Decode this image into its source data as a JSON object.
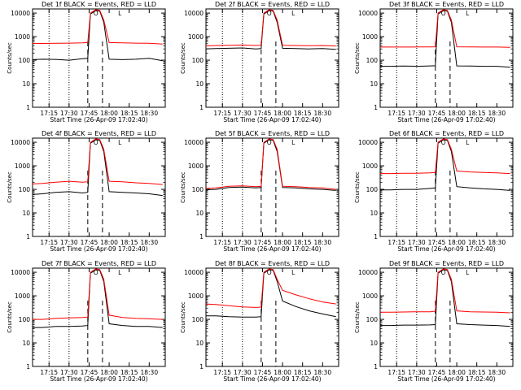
{
  "figure": {
    "footer_text": "Start Time (26-Apr-09 17:02:40)",
    "ylabel": "Counts/sec",
    "legend_glyphs": [
      "O",
      "L"
    ],
    "colors": {
      "events": "#000000",
      "lld": "#ff0000",
      "axis": "#000000",
      "background": "#ffffff"
    }
  },
  "chart_data": [
    {
      "type": "line",
      "title": "Det 1f BLACK = Events, RED = LLD",
      "xlabel": "Start Time (26-Apr-09 17:02:40)",
      "ylabel": "Counts/sec",
      "x_ticks": [
        "17:15",
        "17:30",
        "17:45",
        "18:00",
        "18:15",
        "18:30"
      ],
      "y_ticks": [
        "1",
        "10",
        "100",
        "1000",
        "10000"
      ],
      "y_scale": "log",
      "ylim": [
        1,
        15000
      ],
      "xlim": [
        "17:02:40",
        "18:42:00"
      ],
      "dotted_vlines": [
        "17:15",
        "17:30"
      ],
      "dashed_vlines": [
        "17:44",
        "17:55"
      ],
      "series": [
        {
          "name": "Events",
          "color": "#000000",
          "x": [
            "17:02",
            "17:10",
            "17:20",
            "17:30",
            "17:40",
            "17:44",
            "17:46",
            "17:50",
            "17:53",
            "17:56",
            "18:00",
            "18:10",
            "18:20",
            "18:30",
            "18:40"
          ],
          "values": [
            105,
            110,
            108,
            100,
            115,
            120,
            9000,
            13000,
            12000,
            4000,
            110,
            105,
            110,
            120,
            95
          ]
        },
        {
          "name": "LLD",
          "color": "#ff0000",
          "x": [
            "17:02",
            "17:10",
            "17:20",
            "17:30",
            "17:40",
            "17:44",
            "17:46",
            "17:50",
            "17:53",
            "17:56",
            "18:00",
            "18:10",
            "18:20",
            "18:30",
            "18:40"
          ],
          "values": [
            520,
            510,
            520,
            530,
            540,
            560,
            10000,
            14000,
            13000,
            5000,
            560,
            540,
            530,
            520,
            480
          ]
        }
      ]
    },
    {
      "type": "line",
      "title": "Det 2f BLACK = Events, RED = LLD",
      "xlabel": "Start Time (26-Apr-09 17:02:40)",
      "ylabel": "Counts/sec",
      "x_ticks": [
        "17:15",
        "17:30",
        "17:45",
        "18:00",
        "18:15",
        "18:30"
      ],
      "y_ticks": [
        "1",
        "10",
        "100",
        "1000",
        "10000"
      ],
      "y_scale": "log",
      "ylim": [
        1,
        15000
      ],
      "xlim": [
        "17:02:40",
        "18:42:00"
      ],
      "dotted_vlines": [
        "17:15",
        "17:30"
      ],
      "dashed_vlines": [
        "17:44",
        "17:55"
      ],
      "series": [
        {
          "name": "Events",
          "color": "#000000",
          "x": [
            "17:02",
            "17:10",
            "17:20",
            "17:30",
            "17:40",
            "17:44",
            "17:46",
            "17:50",
            "17:53",
            "17:56",
            "18:00",
            "18:10",
            "18:20",
            "18:30",
            "18:40"
          ],
          "values": [
            300,
            310,
            320,
            330,
            300,
            310,
            9000,
            13000,
            12000,
            4000,
            320,
            310,
            300,
            310,
            290
          ]
        },
        {
          "name": "LLD",
          "color": "#ff0000",
          "x": [
            "17:02",
            "17:10",
            "17:20",
            "17:30",
            "17:40",
            "17:44",
            "17:46",
            "17:50",
            "17:53",
            "17:56",
            "18:00",
            "18:10",
            "18:20",
            "18:30",
            "18:40"
          ],
          "values": [
            400,
            420,
            430,
            440,
            420,
            430,
            10000,
            14000,
            13000,
            5000,
            430,
            420,
            410,
            420,
            400
          ]
        }
      ]
    },
    {
      "type": "line",
      "title": "Det 3f BLACK = Events, RED = LLD",
      "xlabel": "Start Time (26-Apr-09 17:02:40)",
      "ylabel": "Counts/sec",
      "x_ticks": [
        "17:15",
        "17:30",
        "17:45",
        "18:00",
        "18:15",
        "18:30"
      ],
      "y_ticks": [
        "1",
        "10",
        "100",
        "1000",
        "10000"
      ],
      "y_scale": "log",
      "ylim": [
        1,
        15000
      ],
      "xlim": [
        "17:02:40",
        "18:42:00"
      ],
      "dotted_vlines": [
        "17:15",
        "17:30"
      ],
      "dashed_vlines": [
        "17:44",
        "17:55"
      ],
      "series": [
        {
          "name": "Events",
          "color": "#000000",
          "x": [
            "17:02",
            "17:10",
            "17:20",
            "17:30",
            "17:40",
            "17:44",
            "17:46",
            "17:50",
            "17:53",
            "17:56",
            "18:00",
            "18:10",
            "18:20",
            "18:30",
            "18:40"
          ],
          "values": [
            55,
            55,
            56,
            55,
            57,
            58,
            9000,
            13000,
            12000,
            4000,
            57,
            56,
            55,
            55,
            50
          ]
        },
        {
          "name": "LLD",
          "color": "#ff0000",
          "x": [
            "17:02",
            "17:10",
            "17:20",
            "17:30",
            "17:40",
            "17:44",
            "17:46",
            "17:50",
            "17:53",
            "17:56",
            "18:00",
            "18:10",
            "18:20",
            "18:30",
            "18:40"
          ],
          "values": [
            360,
            360,
            360,
            365,
            365,
            370,
            10000,
            14000,
            13000,
            5000,
            370,
            365,
            360,
            360,
            350
          ]
        }
      ]
    },
    {
      "type": "line",
      "title": "Det 4f BLACK = Events, RED = LLD",
      "xlabel": "Start Time (26-Apr-09 17:02:40)",
      "ylabel": "Counts/sec",
      "x_ticks": [
        "17:15",
        "17:30",
        "17:45",
        "18:00",
        "18:15",
        "18:30"
      ],
      "y_ticks": [
        "1",
        "10",
        "100",
        "1000",
        "10000"
      ],
      "y_scale": "log",
      "ylim": [
        1,
        15000
      ],
      "xlim": [
        "17:02:40",
        "18:42:00"
      ],
      "dotted_vlines": [
        "17:15",
        "17:30"
      ],
      "dashed_vlines": [
        "17:44",
        "17:55"
      ],
      "series": [
        {
          "name": "Events",
          "color": "#000000",
          "x": [
            "17:02",
            "17:10",
            "17:20",
            "17:30",
            "17:40",
            "17:44",
            "17:46",
            "17:50",
            "17:53",
            "17:56",
            "18:00",
            "18:10",
            "18:20",
            "18:30",
            "18:40"
          ],
          "values": [
            60,
            65,
            75,
            80,
            70,
            75,
            9000,
            13000,
            12000,
            4000,
            80,
            75,
            70,
            65,
            55
          ]
        },
        {
          "name": "LLD",
          "color": "#ff0000",
          "x": [
            "17:02",
            "17:10",
            "17:20",
            "17:30",
            "17:40",
            "17:44",
            "17:46",
            "17:50",
            "17:53",
            "17:56",
            "18:00",
            "18:10",
            "18:20",
            "18:30",
            "18:40"
          ],
          "values": [
            170,
            180,
            200,
            220,
            200,
            210,
            10000,
            14000,
            13000,
            5000,
            220,
            210,
            190,
            180,
            160
          ]
        }
      ]
    },
    {
      "type": "line",
      "title": "Det 5f BLACK = Events, RED = LLD",
      "xlabel": "Start Time (26-Apr-09 17:02:40)",
      "ylabel": "Counts/sec",
      "x_ticks": [
        "17:15",
        "17:30",
        "17:45",
        "18:00",
        "18:15",
        "18:30"
      ],
      "y_ticks": [
        "1",
        "10",
        "100",
        "1000",
        "10000"
      ],
      "y_scale": "log",
      "ylim": [
        1,
        15000
      ],
      "xlim": [
        "17:02:40",
        "18:42:00"
      ],
      "dotted_vlines": [
        "17:15",
        "17:30"
      ],
      "dashed_vlines": [
        "17:44",
        "17:55"
      ],
      "series": [
        {
          "name": "Events",
          "color": "#000000",
          "x": [
            "17:02",
            "17:10",
            "17:20",
            "17:30",
            "17:40",
            "17:44",
            "17:46",
            "17:50",
            "17:53",
            "17:56",
            "18:00",
            "18:10",
            "18:20",
            "18:30",
            "18:40"
          ],
          "values": [
            95,
            100,
            120,
            125,
            115,
            120,
            9000,
            13000,
            12000,
            4000,
            120,
            115,
            105,
            100,
            90
          ]
        },
        {
          "name": "LLD",
          "color": "#ff0000",
          "x": [
            "17:02",
            "17:10",
            "17:20",
            "17:30",
            "17:40",
            "17:44",
            "17:46",
            "17:50",
            "17:53",
            "17:56",
            "18:00",
            "18:10",
            "18:20",
            "18:30",
            "18:40"
          ],
          "values": [
            110,
            115,
            135,
            140,
            130,
            135,
            10000,
            14000,
            13000,
            5000,
            135,
            130,
            120,
            115,
            100
          ]
        }
      ]
    },
    {
      "type": "line",
      "title": "Det 6f BLACK = Events, RED = LLD",
      "xlabel": "Start Time (26-Apr-09 17:02:40)",
      "ylabel": "Counts/sec",
      "x_ticks": [
        "17:15",
        "17:30",
        "17:45",
        "18:00",
        "18:15",
        "18:30"
      ],
      "y_ticks": [
        "1",
        "10",
        "100",
        "1000",
        "10000"
      ],
      "y_scale": "log",
      "ylim": [
        1,
        15000
      ],
      "xlim": [
        "17:02:40",
        "18:42:00"
      ],
      "dotted_vlines": [
        "17:15",
        "17:30"
      ],
      "dashed_vlines": [
        "17:44",
        "17:55"
      ],
      "series": [
        {
          "name": "Events",
          "color": "#000000",
          "x": [
            "17:02",
            "17:10",
            "17:20",
            "17:30",
            "17:40",
            "17:44",
            "17:46",
            "17:50",
            "17:53",
            "17:56",
            "18:00",
            "18:10",
            "18:20",
            "18:30",
            "18:40"
          ],
          "values": [
            95,
            95,
            100,
            100,
            110,
            115,
            9000,
            13000,
            12000,
            4000,
            130,
            115,
            105,
            100,
            90
          ]
        },
        {
          "name": "LLD",
          "color": "#ff0000",
          "x": [
            "17:02",
            "17:10",
            "17:20",
            "17:30",
            "17:40",
            "17:44",
            "17:46",
            "17:50",
            "17:53",
            "17:56",
            "18:00",
            "18:10",
            "18:20",
            "18:30",
            "18:40"
          ],
          "values": [
            470,
            470,
            480,
            480,
            500,
            520,
            10000,
            14000,
            13000,
            5000,
            600,
            550,
            520,
            500,
            470
          ]
        }
      ]
    },
    {
      "type": "line",
      "title": "Det 7f BLACK = Events, RED = LLD",
      "xlabel": "Start Time (26-Apr-09 17:02:40)",
      "ylabel": "Counts/sec",
      "x_ticks": [
        "17:15",
        "17:30",
        "17:45",
        "18:00",
        "18:15",
        "18:30"
      ],
      "y_ticks": [
        "1",
        "10",
        "100",
        "1000",
        "10000"
      ],
      "y_scale": "log",
      "ylim": [
        1,
        15000
      ],
      "xlim": [
        "17:02:40",
        "18:42:00"
      ],
      "dotted_vlines": [
        "17:15",
        "17:30"
      ],
      "dashed_vlines": [
        "17:44",
        "17:55"
      ],
      "series": [
        {
          "name": "Events",
          "color": "#000000",
          "x": [
            "17:02",
            "17:10",
            "17:20",
            "17:30",
            "17:40",
            "17:44",
            "17:46",
            "17:50",
            "17:53",
            "17:56",
            "18:00",
            "18:10",
            "18:20",
            "18:30",
            "18:40"
          ],
          "values": [
            45,
            45,
            50,
            50,
            52,
            55,
            9000,
            13000,
            12000,
            4000,
            65,
            55,
            50,
            50,
            45
          ]
        },
        {
          "name": "LLD",
          "color": "#ff0000",
          "x": [
            "17:02",
            "17:10",
            "17:20",
            "17:30",
            "17:40",
            "17:44",
            "17:46",
            "17:50",
            "17:53",
            "17:56",
            "18:00",
            "18:10",
            "18:20",
            "18:30",
            "18:40"
          ],
          "values": [
            100,
            100,
            110,
            115,
            120,
            125,
            10000,
            14000,
            13000,
            5000,
            150,
            120,
            110,
            105,
            100
          ]
        }
      ]
    },
    {
      "type": "line",
      "title": "Det 8f BLACK = Events, RED = LLD",
      "xlabel": "Start Time (26-Apr-09 17:02:40)",
      "ylabel": "Counts/sec",
      "x_ticks": [
        "17:15",
        "17:30",
        "17:45",
        "18:00",
        "18:15",
        "18:30"
      ],
      "y_ticks": [
        "1",
        "10",
        "100",
        "1000",
        "10000"
      ],
      "y_scale": "log",
      "ylim": [
        1,
        15000
      ],
      "xlim": [
        "17:02:40",
        "18:42:00"
      ],
      "dotted_vlines": [
        "17:15",
        "17:30"
      ],
      "dashed_vlines": [
        "17:44",
        "17:55"
      ],
      "series": [
        {
          "name": "Events",
          "color": "#000000",
          "x": [
            "17:02",
            "17:10",
            "17:20",
            "17:30",
            "17:40",
            "17:44",
            "17:46",
            "17:50",
            "17:53",
            "17:56",
            "18:00",
            "18:10",
            "18:20",
            "18:30",
            "18:40"
          ],
          "values": [
            140,
            140,
            130,
            125,
            125,
            130,
            9000,
            13000,
            12000,
            4000,
            600,
            350,
            230,
            170,
            130
          ]
        },
        {
          "name": "LLD",
          "color": "#ff0000",
          "x": [
            "17:02",
            "17:10",
            "17:20",
            "17:30",
            "17:40",
            "17:44",
            "17:46",
            "17:50",
            "17:53",
            "17:56",
            "18:00",
            "18:10",
            "18:20",
            "18:30",
            "18:40"
          ],
          "values": [
            450,
            430,
            380,
            340,
            320,
            330,
            10000,
            14000,
            13000,
            5000,
            1700,
            1100,
            750,
            550,
            450
          ]
        }
      ]
    },
    {
      "type": "line",
      "title": "Det 9f BLACK = Events, RED = LLD",
      "xlabel": "Start Time (26-Apr-09 17:02:40)",
      "ylabel": "Counts/sec",
      "x_ticks": [
        "17:15",
        "17:30",
        "17:45",
        "18:00",
        "18:15",
        "18:30"
      ],
      "y_ticks": [
        "1",
        "10",
        "100",
        "1000",
        "10000"
      ],
      "y_scale": "log",
      "ylim": [
        1,
        15000
      ],
      "xlim": [
        "17:02:40",
        "18:42:00"
      ],
      "dotted_vlines": [
        "17:15",
        "17:30"
      ],
      "dashed_vlines": [
        "17:44",
        "17:55"
      ],
      "series": [
        {
          "name": "Events",
          "color": "#000000",
          "x": [
            "17:02",
            "17:10",
            "17:20",
            "17:30",
            "17:40",
            "17:44",
            "17:46",
            "17:50",
            "17:53",
            "17:56",
            "18:00",
            "18:10",
            "18:20",
            "18:30",
            "18:40"
          ],
          "values": [
            55,
            55,
            57,
            57,
            58,
            60,
            9000,
            13000,
            12000,
            4000,
            65,
            60,
            57,
            55,
            50
          ]
        },
        {
          "name": "LLD",
          "color": "#ff0000",
          "x": [
            "17:02",
            "17:10",
            "17:20",
            "17:30",
            "17:40",
            "17:44",
            "17:46",
            "17:50",
            "17:53",
            "17:56",
            "18:00",
            "18:10",
            "18:20",
            "18:30",
            "18:40"
          ],
          "values": [
            200,
            200,
            205,
            210,
            210,
            220,
            10000,
            14000,
            13000,
            5000,
            230,
            210,
            205,
            200,
            190
          ]
        }
      ]
    }
  ]
}
